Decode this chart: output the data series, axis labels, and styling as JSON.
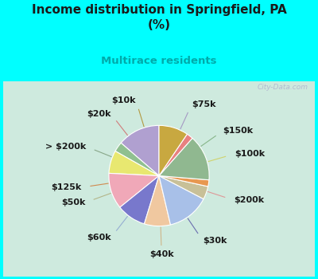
{
  "title": "Income distribution in Springfield, PA\n(%)",
  "subtitle": "Multirace residents",
  "title_color": "#1a1a1a",
  "subtitle_color": "#00aaaa",
  "bg_top": "#00ffff",
  "bg_chart_color": "#d0ede0",
  "watermark": "City-Data.com",
  "labels": [
    "$75k",
    "$150k",
    "$100k",
    "$200k",
    "$30k",
    "$40k",
    "$60k",
    "$50k",
    "$125k",
    "> $200k",
    "$20k",
    "$10k"
  ],
  "values": [
    13,
    3,
    7,
    11,
    9,
    8,
    13,
    4,
    2,
    14,
    2,
    9
  ],
  "colors": [
    "#b0a0d0",
    "#90c090",
    "#e8e870",
    "#f0a8b8",
    "#7878cc",
    "#f0c8a0",
    "#a8c0e8",
    "#c8c098",
    "#e89850",
    "#90b890",
    "#e88080",
    "#c8a840"
  ],
  "label_fontsize": 8.0,
  "startangle": 90
}
